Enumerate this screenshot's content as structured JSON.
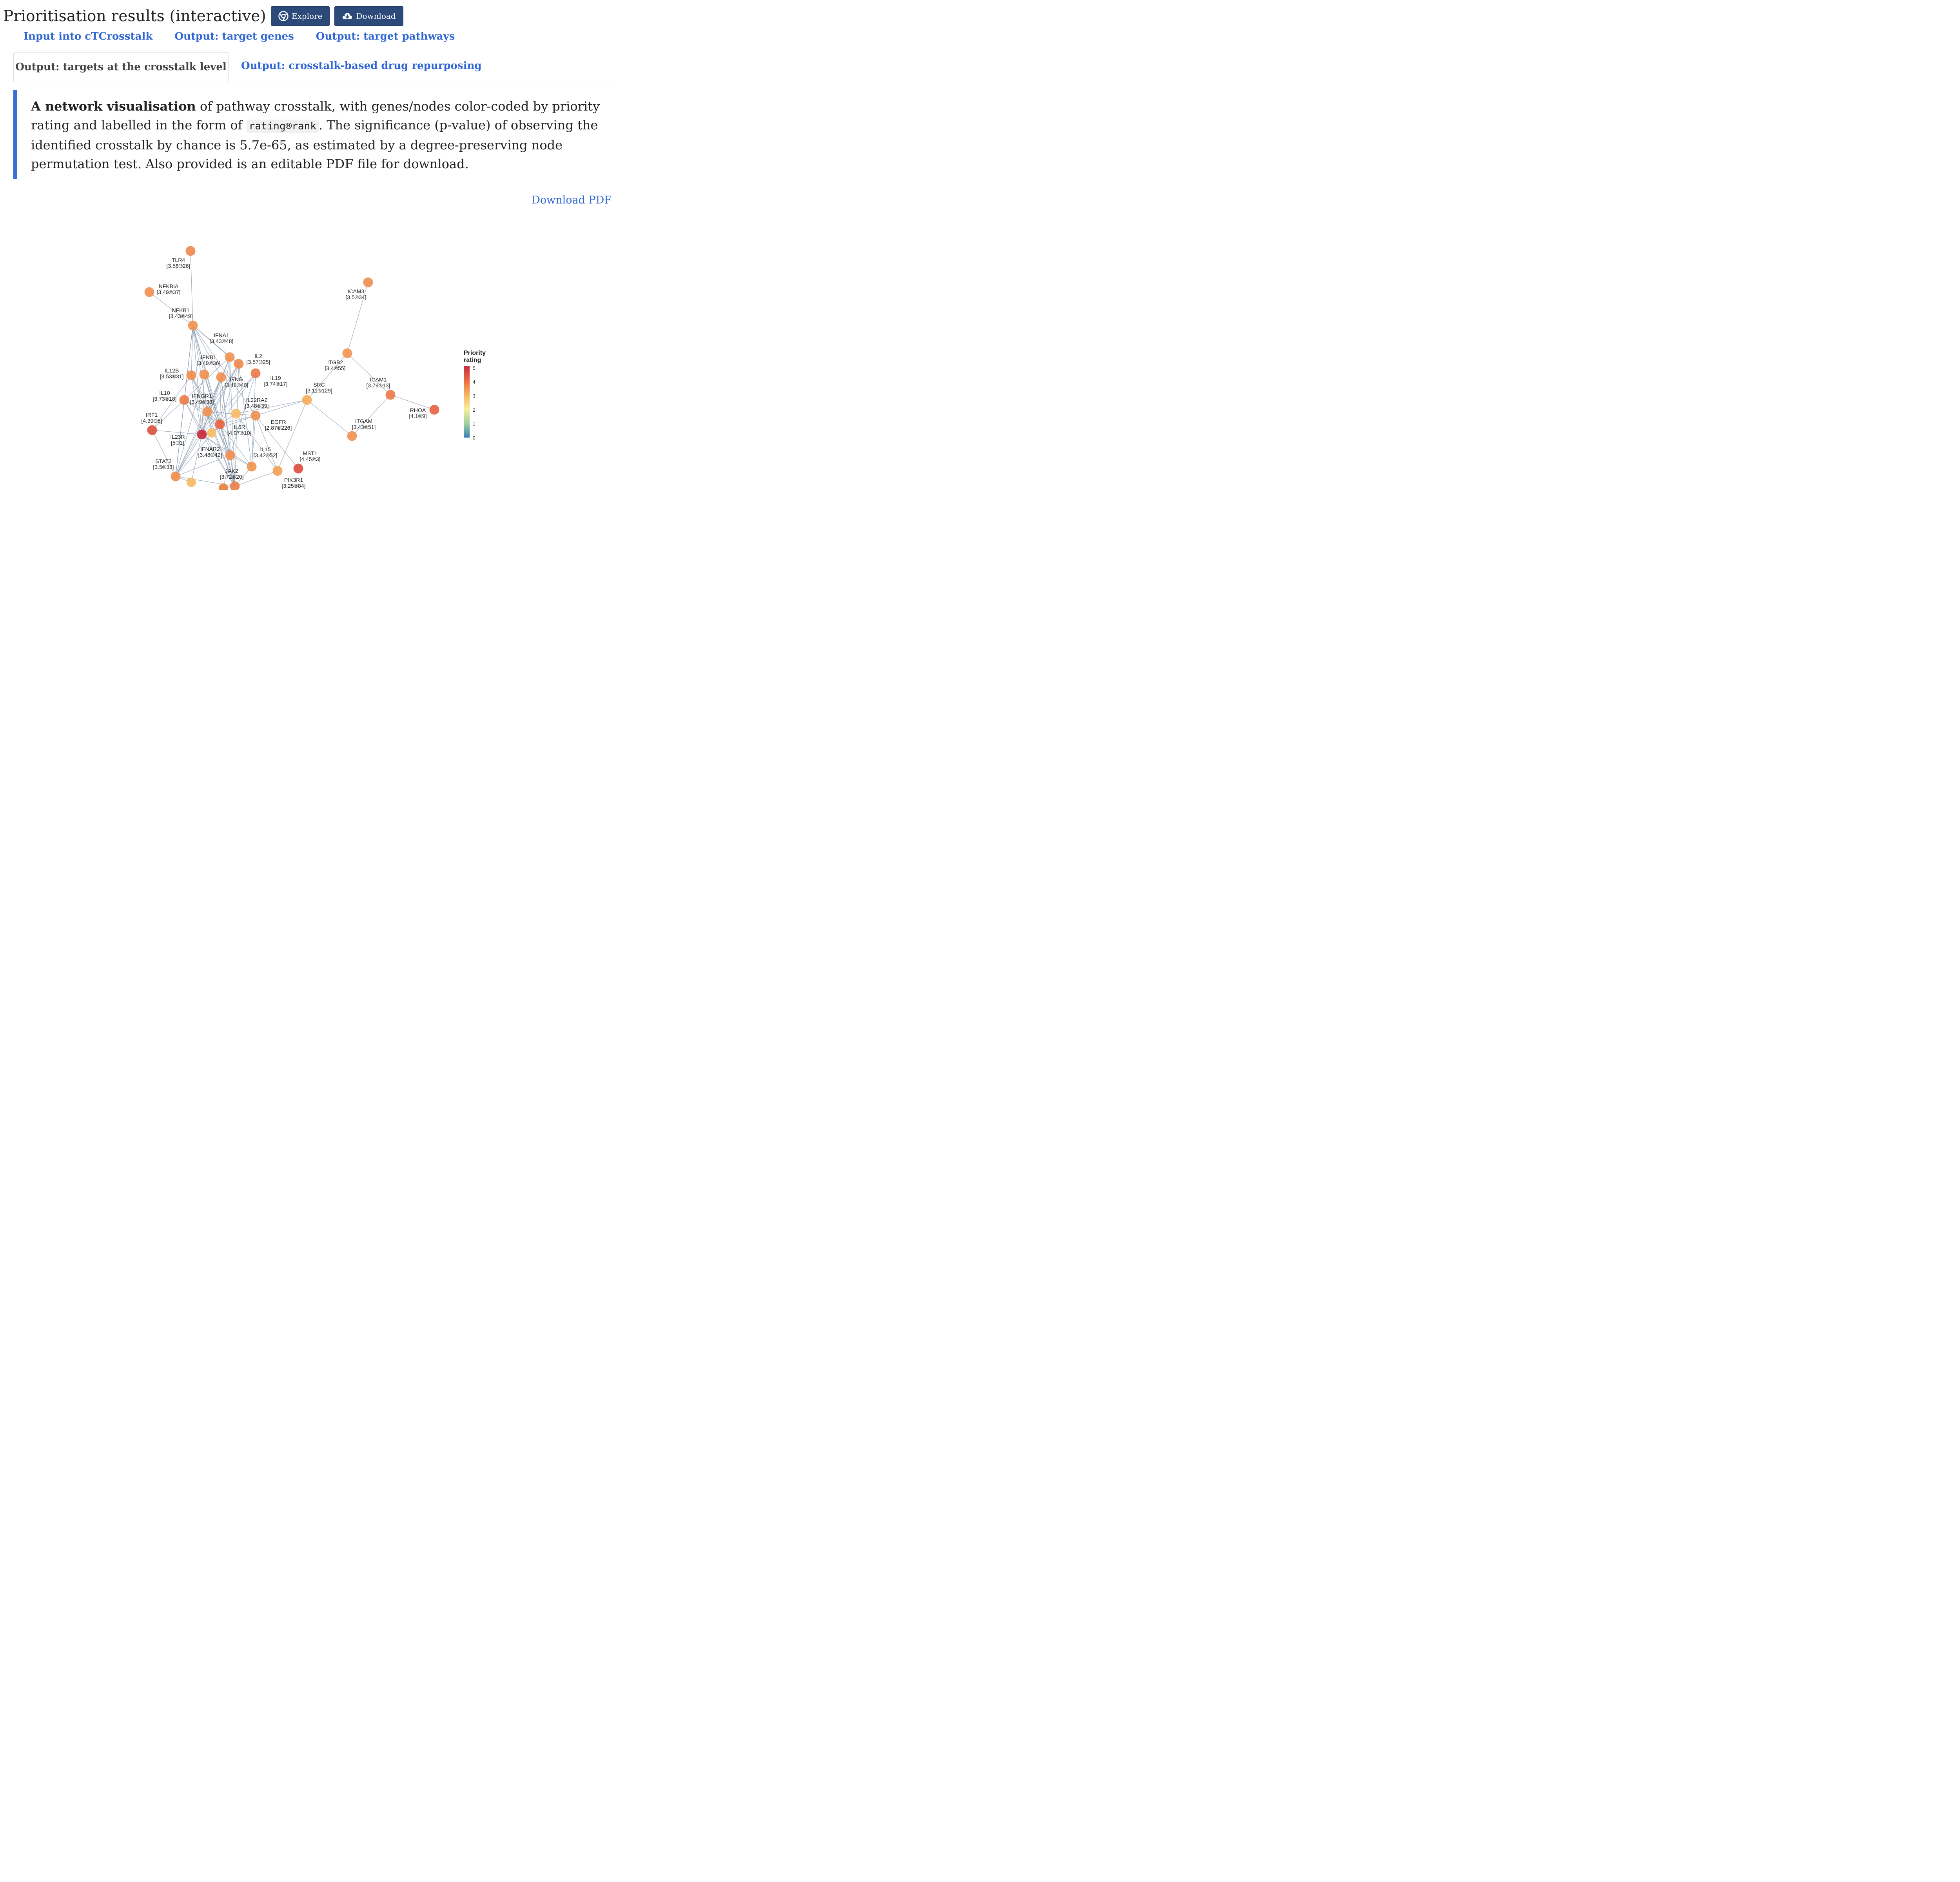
{
  "header": {
    "title": "Prioritisation results (interactive)",
    "explore_label": "Explore",
    "download_label": "Download"
  },
  "tabs_row1": [
    {
      "label": "Input into cTCrosstalk"
    },
    {
      "label": "Output: target genes"
    },
    {
      "label": "Output: target pathways"
    }
  ],
  "tabs_row2": [
    {
      "label": "Output: targets at the crosstalk level",
      "active": true
    },
    {
      "label": "Output: crosstalk-based drug repurposing"
    }
  ],
  "note": {
    "bold_lead": "A network visualisation",
    "text_1": " of pathway crosstalk, with genes/nodes color-coded by priority rating and labelled in the form of ",
    "code": "rating®rank",
    "text_2": ". The significance (p-value) of observing the identified crosstalk by chance is 5.7e-65, as estimated by a degree-preserving node permutation test. Also provided is an editable PDF file for download."
  },
  "download_pdf_label": "Download PDF",
  "legend": {
    "title_line1": "Priority",
    "title_line2": "rating",
    "ticks": [
      "5",
      "4",
      "3",
      "2",
      "1",
      "0"
    ]
  },
  "colors": {
    "link": "#2f66d4",
    "button_bg": "#2b4a7a",
    "note_border": "#3a6fd8",
    "edge": "#8a9bb0"
  },
  "network": {
    "nodes": [
      {
        "id": "TLR4",
        "name": "TLR4",
        "label": "[3.56®26]",
        "rating": 3.56
      },
      {
        "id": "NFKBIA",
        "name": "NFKBIA",
        "label": "[3.49®37]",
        "rating": 3.49
      },
      {
        "id": "NFKB1",
        "name": "NFKB1",
        "label": "[3.43®49]",
        "rating": 3.43
      },
      {
        "id": "IFNA1",
        "name": "IFNA1",
        "label": "[3.43®48]",
        "rating": 3.43
      },
      {
        "id": "IFNB1",
        "name": "IFNB1",
        "label": "[3.49®36]",
        "rating": 3.49
      },
      {
        "id": "IL2",
        "name": "IL2",
        "label": "[3.57®25]",
        "rating": 3.57
      },
      {
        "id": "IL12B",
        "name": "IL12B",
        "label": "[3.53®31]",
        "rating": 3.53
      },
      {
        "id": "IFNG",
        "name": "IFNG",
        "label": "[3.48®40]",
        "rating": 3.48
      },
      {
        "id": "IL19",
        "name": "IL19",
        "label": "[3.74®17]",
        "rating": 3.74
      },
      {
        "id": "IL10",
        "name": "IL10",
        "label": "[3.73®18]",
        "rating": 3.73
      },
      {
        "id": "IFNGR1",
        "name": "IFNGR1",
        "label": "[3.49®38]",
        "rating": 3.49
      },
      {
        "id": "IL22RA2",
        "name": "IL22RA2",
        "label": "[3.48®39]",
        "rating": 3.48
      },
      {
        "id": "IRF1",
        "name": "IRF1",
        "label": "[4.39®5]",
        "rating": 4.39
      },
      {
        "id": "IL6R",
        "name": "IL6R",
        "label": "[4.07®10]",
        "rating": 4.07
      },
      {
        "id": "EGFR",
        "name": "EGFR",
        "label": "[2.87®226]",
        "rating": 2.87
      },
      {
        "id": "IL23R",
        "name": "IL23R",
        "label": "[5®1]",
        "rating": 5
      },
      {
        "id": "IFNAR2",
        "name": "IFNAR2",
        "label": "[3.48®42]",
        "rating": 3.48
      },
      {
        "id": "IL15",
        "name": "IL15",
        "label": "[3.42®52]",
        "rating": 3.42
      },
      {
        "id": "STAT3",
        "name": "STAT3",
        "label": "[3.5®33]",
        "rating": 3.5
      },
      {
        "id": "JAK2",
        "name": "JAK2",
        "label": "[3.72®20]",
        "rating": 3.72
      },
      {
        "id": "MST1",
        "name": "MST1",
        "label": "[4.45®3]",
        "rating": 4.45
      },
      {
        "id": "PIK3R1",
        "name": "PIK3R1",
        "label": "[3.25®84]",
        "rating": 3.25
      },
      {
        "id": "ICAM3",
        "name": "ICAM3",
        "label": "[3.5®34]",
        "rating": 3.5
      },
      {
        "id": "ITGB2",
        "name": "ITGB2",
        "label": "[3.4®55]",
        "rating": 3.4
      },
      {
        "id": "SRC",
        "name": "SRC",
        "label": "[3.11®129]",
        "rating": 3.11
      },
      {
        "id": "ICAM1",
        "name": "ICAM1",
        "label": "[3.79®13]",
        "rating": 3.79
      },
      {
        "id": "RHOA",
        "name": "RHOA",
        "label": "[4.1®9]",
        "rating": 4.1
      },
      {
        "id": "ITGAM",
        "name": "ITGAM",
        "label": "[3.43®51]",
        "rating": 3.43
      }
    ],
    "edges": [
      [
        "TLR4",
        "NFKB1"
      ],
      [
        "NFKBIA",
        "NFKB1"
      ],
      [
        "NFKB1",
        "IFNB1"
      ],
      [
        "NFKB1",
        "IL12B"
      ],
      [
        "NFKB1",
        "IFNGR1"
      ],
      [
        "NFKB1",
        "IFNG"
      ],
      [
        "NFKB1",
        "IL23R"
      ],
      [
        "NFKB1",
        "IFNAR2"
      ],
      [
        "NFKB1",
        "IL6R"
      ],
      [
        "NFKB1",
        "IL22RA2"
      ],
      [
        "NFKB1",
        "IFNA1"
      ],
      [
        "NFKB1",
        "IL2"
      ],
      [
        "NFKB1",
        "IL10"
      ],
      [
        "NFKB1",
        "STAT3"
      ],
      [
        "IFNA1",
        "IFNAR2"
      ],
      [
        "IFNA1",
        "IFNGR1"
      ],
      [
        "IFNA1",
        "IL23R"
      ],
      [
        "IFNA1",
        "JAK2"
      ],
      [
        "IFNA1",
        "IL6R"
      ],
      [
        "IFNA1",
        "IL10"
      ],
      [
        "IFNB1",
        "IFNAR2"
      ],
      [
        "IFNB1",
        "IL23R"
      ],
      [
        "IFNB1",
        "IL6R"
      ],
      [
        "IFNB1",
        "STAT3"
      ],
      [
        "IFNB1",
        "JAK2"
      ],
      [
        "IL2",
        "IL23R"
      ],
      [
        "IL2",
        "IL6R"
      ],
      [
        "IL2",
        "IFNGR1"
      ],
      [
        "IL2",
        "IL15"
      ],
      [
        "IL2",
        "JAK2"
      ],
      [
        "IL2",
        "STAT3"
      ],
      [
        "IL12B",
        "IL23R"
      ],
      [
        "IL12B",
        "IFNAR2"
      ],
      [
        "IL12B",
        "IL6R"
      ],
      [
        "IL12B",
        "IRF1"
      ],
      [
        "IL12B",
        "JAK2"
      ],
      [
        "IFNG",
        "IFNGR1"
      ],
      [
        "IFNG",
        "IL23R"
      ],
      [
        "IFNG",
        "JAK2"
      ],
      [
        "IFNG",
        "IL6R"
      ],
      [
        "IFNG",
        "IFNAR2"
      ],
      [
        "IFNG",
        "STAT3"
      ],
      [
        "IL19",
        "IL23R"
      ],
      [
        "IL19",
        "IL6R"
      ],
      [
        "IL19",
        "IL15"
      ],
      [
        "IL19",
        "IFNAR2"
      ],
      [
        "IL10",
        "IL23R"
      ],
      [
        "IL10",
        "IFNGR1"
      ],
      [
        "IL10",
        "IL6R"
      ],
      [
        "IL10",
        "JAK2"
      ],
      [
        "IL10",
        "IRF1"
      ],
      [
        "IL10",
        "STAT3"
      ],
      [
        "IFNGR1",
        "IL23R"
      ],
      [
        "IFNGR1",
        "IL6R"
      ],
      [
        "IFNGR1",
        "JAK2"
      ],
      [
        "IFNGR1",
        "IFNAR2"
      ],
      [
        "IFNGR1",
        "STAT3"
      ],
      [
        "IFNGR1",
        "IL22RA2"
      ],
      [
        "IL22RA2",
        "IL6R"
      ],
      [
        "IL22RA2",
        "IL23R"
      ],
      [
        "IL22RA2",
        "IL15"
      ],
      [
        "IL22RA2",
        "SRC"
      ],
      [
        "IL22RA2",
        "MST1"
      ],
      [
        "IL22RA2",
        "PIK3R1"
      ],
      [
        "IRF1",
        "STAT3"
      ],
      [
        "IRF1",
        "IL23R"
      ],
      [
        "IL6R",
        "JAK2"
      ],
      [
        "IL6R",
        "STAT3"
      ],
      [
        "IL6R",
        "IL15"
      ],
      [
        "IL6R",
        "IFNAR2"
      ],
      [
        "IL6R",
        "EGFR"
      ],
      [
        "IL23R",
        "JAK2"
      ],
      [
        "IL23R",
        "STAT3"
      ],
      [
        "IL23R",
        "IFNAR2"
      ],
      [
        "IL23R",
        "IL15"
      ],
      [
        "IFNAR2",
        "JAK2"
      ],
      [
        "IFNAR2",
        "IL15"
      ],
      [
        "IFNAR2",
        "STAT3"
      ],
      [
        "IL15",
        "JAK2"
      ],
      [
        "JAK2",
        "PIK3R1"
      ],
      [
        "JAK2",
        "STAT3"
      ],
      [
        "EGFR",
        "SRC"
      ],
      [
        "EGFR",
        "PIK3R1"
      ],
      [
        "SRC",
        "PIK3R1"
      ],
      [
        "SRC",
        "ITGB2"
      ],
      [
        "SRC",
        "ITGAM"
      ],
      [
        "ITGB2",
        "ICAM3"
      ],
      [
        "ITGB2",
        "ICAM1"
      ],
      [
        "ICAM1",
        "RHOA"
      ],
      [
        "ICAM1",
        "ITGAM"
      ]
    ]
  }
}
